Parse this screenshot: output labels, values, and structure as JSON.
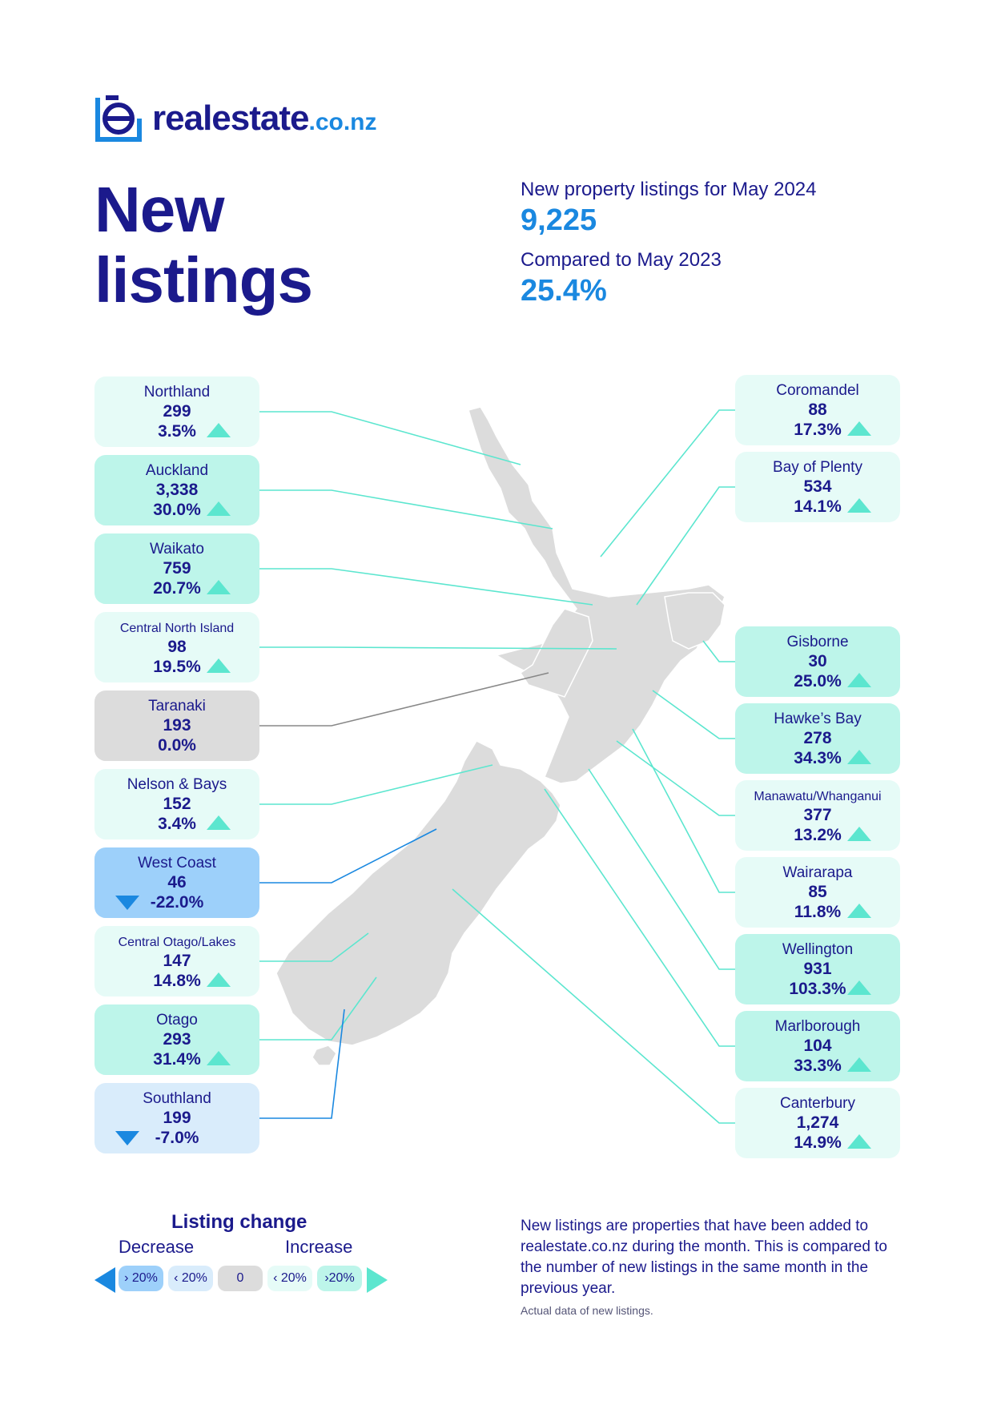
{
  "brand": {
    "name": "realestate",
    "tld": ".co.nz"
  },
  "title": {
    "line1": "New",
    "line2": "listings"
  },
  "summary": {
    "listings_label": "New property listings for May 2024",
    "listings_value": "9,225",
    "compare_label": "Compared to May 2023",
    "compare_value": "25.4%"
  },
  "colors": {
    "navy": "#1b1a8c",
    "blue": "#1a88e0",
    "increase": "#5ce6cf",
    "increase_low_bg": "#e6fbf7",
    "increase_high_bg": "#bdf5ea",
    "zero_bg": "#dcdcdc",
    "decrease_low_bg": "#d9ecfb",
    "decrease_high_bg": "#9dd0fa",
    "map_land": "#dcdcdc"
  },
  "regions": [
    {
      "id": "northland",
      "name": "Northland",
      "count": "299",
      "change": "3.5%",
      "direction": "up",
      "level": "inc-low"
    },
    {
      "id": "auckland",
      "name": "Auckland",
      "count": "3,338",
      "change": "30.0%",
      "direction": "up",
      "level": "inc-high"
    },
    {
      "id": "waikato",
      "name": "Waikato",
      "count": "759",
      "change": "20.7%",
      "direction": "up",
      "level": "inc-high"
    },
    {
      "id": "central-north-island",
      "name": "Central North Island",
      "count": "98",
      "change": "19.5%",
      "direction": "up",
      "level": "inc-low"
    },
    {
      "id": "taranaki",
      "name": "Taranaki",
      "count": "193",
      "change": "0.0%",
      "direction": "none",
      "level": "zero"
    },
    {
      "id": "nelson-bays",
      "name": "Nelson & Bays",
      "count": "152",
      "change": "3.4%",
      "direction": "up",
      "level": "inc-low"
    },
    {
      "id": "west-coast",
      "name": "West Coast",
      "count": "46",
      "change": "-22.0%",
      "direction": "down",
      "level": "dec-high"
    },
    {
      "id": "central-otago-lakes",
      "name": "Central Otago/Lakes",
      "count": "147",
      "change": "14.8%",
      "direction": "up",
      "level": "inc-low"
    },
    {
      "id": "otago",
      "name": "Otago",
      "count": "293",
      "change": "31.4%",
      "direction": "up",
      "level": "inc-high"
    },
    {
      "id": "southland",
      "name": "Southland",
      "count": "199",
      "change": "-7.0%",
      "direction": "down",
      "level": "dec-low"
    },
    {
      "id": "coromandel",
      "name": "Coromandel",
      "count": "88",
      "change": "17.3%",
      "direction": "up",
      "level": "inc-low"
    },
    {
      "id": "bay-of-plenty",
      "name": "Bay of Plenty",
      "count": "534",
      "change": "14.1%",
      "direction": "up",
      "level": "inc-low"
    },
    {
      "id": "gisborne",
      "name": "Gisborne",
      "count": "30",
      "change": "25.0%",
      "direction": "up",
      "level": "inc-high"
    },
    {
      "id": "hawkes-bay",
      "name": "Hawke’s Bay",
      "count": "278",
      "change": "34.3%",
      "direction": "up",
      "level": "inc-high"
    },
    {
      "id": "manawatu-whanganui",
      "name": "Manawatu/Whanganui",
      "count": "377",
      "change": "13.2%",
      "direction": "up",
      "level": "inc-low"
    },
    {
      "id": "wairarapa",
      "name": "Wairarapa",
      "count": "85",
      "change": "11.8%",
      "direction": "up",
      "level": "inc-low"
    },
    {
      "id": "wellington",
      "name": "Wellington",
      "count": "931",
      "change": "103.3%",
      "direction": "up",
      "level": "inc-high"
    },
    {
      "id": "marlborough",
      "name": "Marlborough",
      "count": "104",
      "change": "33.3%",
      "direction": "up",
      "level": "inc-high"
    },
    {
      "id": "canterbury",
      "name": "Canterbury",
      "count": "1,274",
      "change": "14.9%",
      "direction": "up",
      "level": "inc-low"
    }
  ],
  "legend": {
    "title": "Listing change",
    "decrease_label": "Decrease",
    "increase_label": "Increase",
    "chips": [
      "› 20%",
      "‹ 20%",
      "0",
      "‹ 20%",
      "›20%"
    ]
  },
  "footnote": {
    "text": "New listings are properties that have been added to realestate.co.nz during the month. This is compared to the number of new listings in the same month in the previous year.",
    "small": "Actual data of new listings."
  }
}
